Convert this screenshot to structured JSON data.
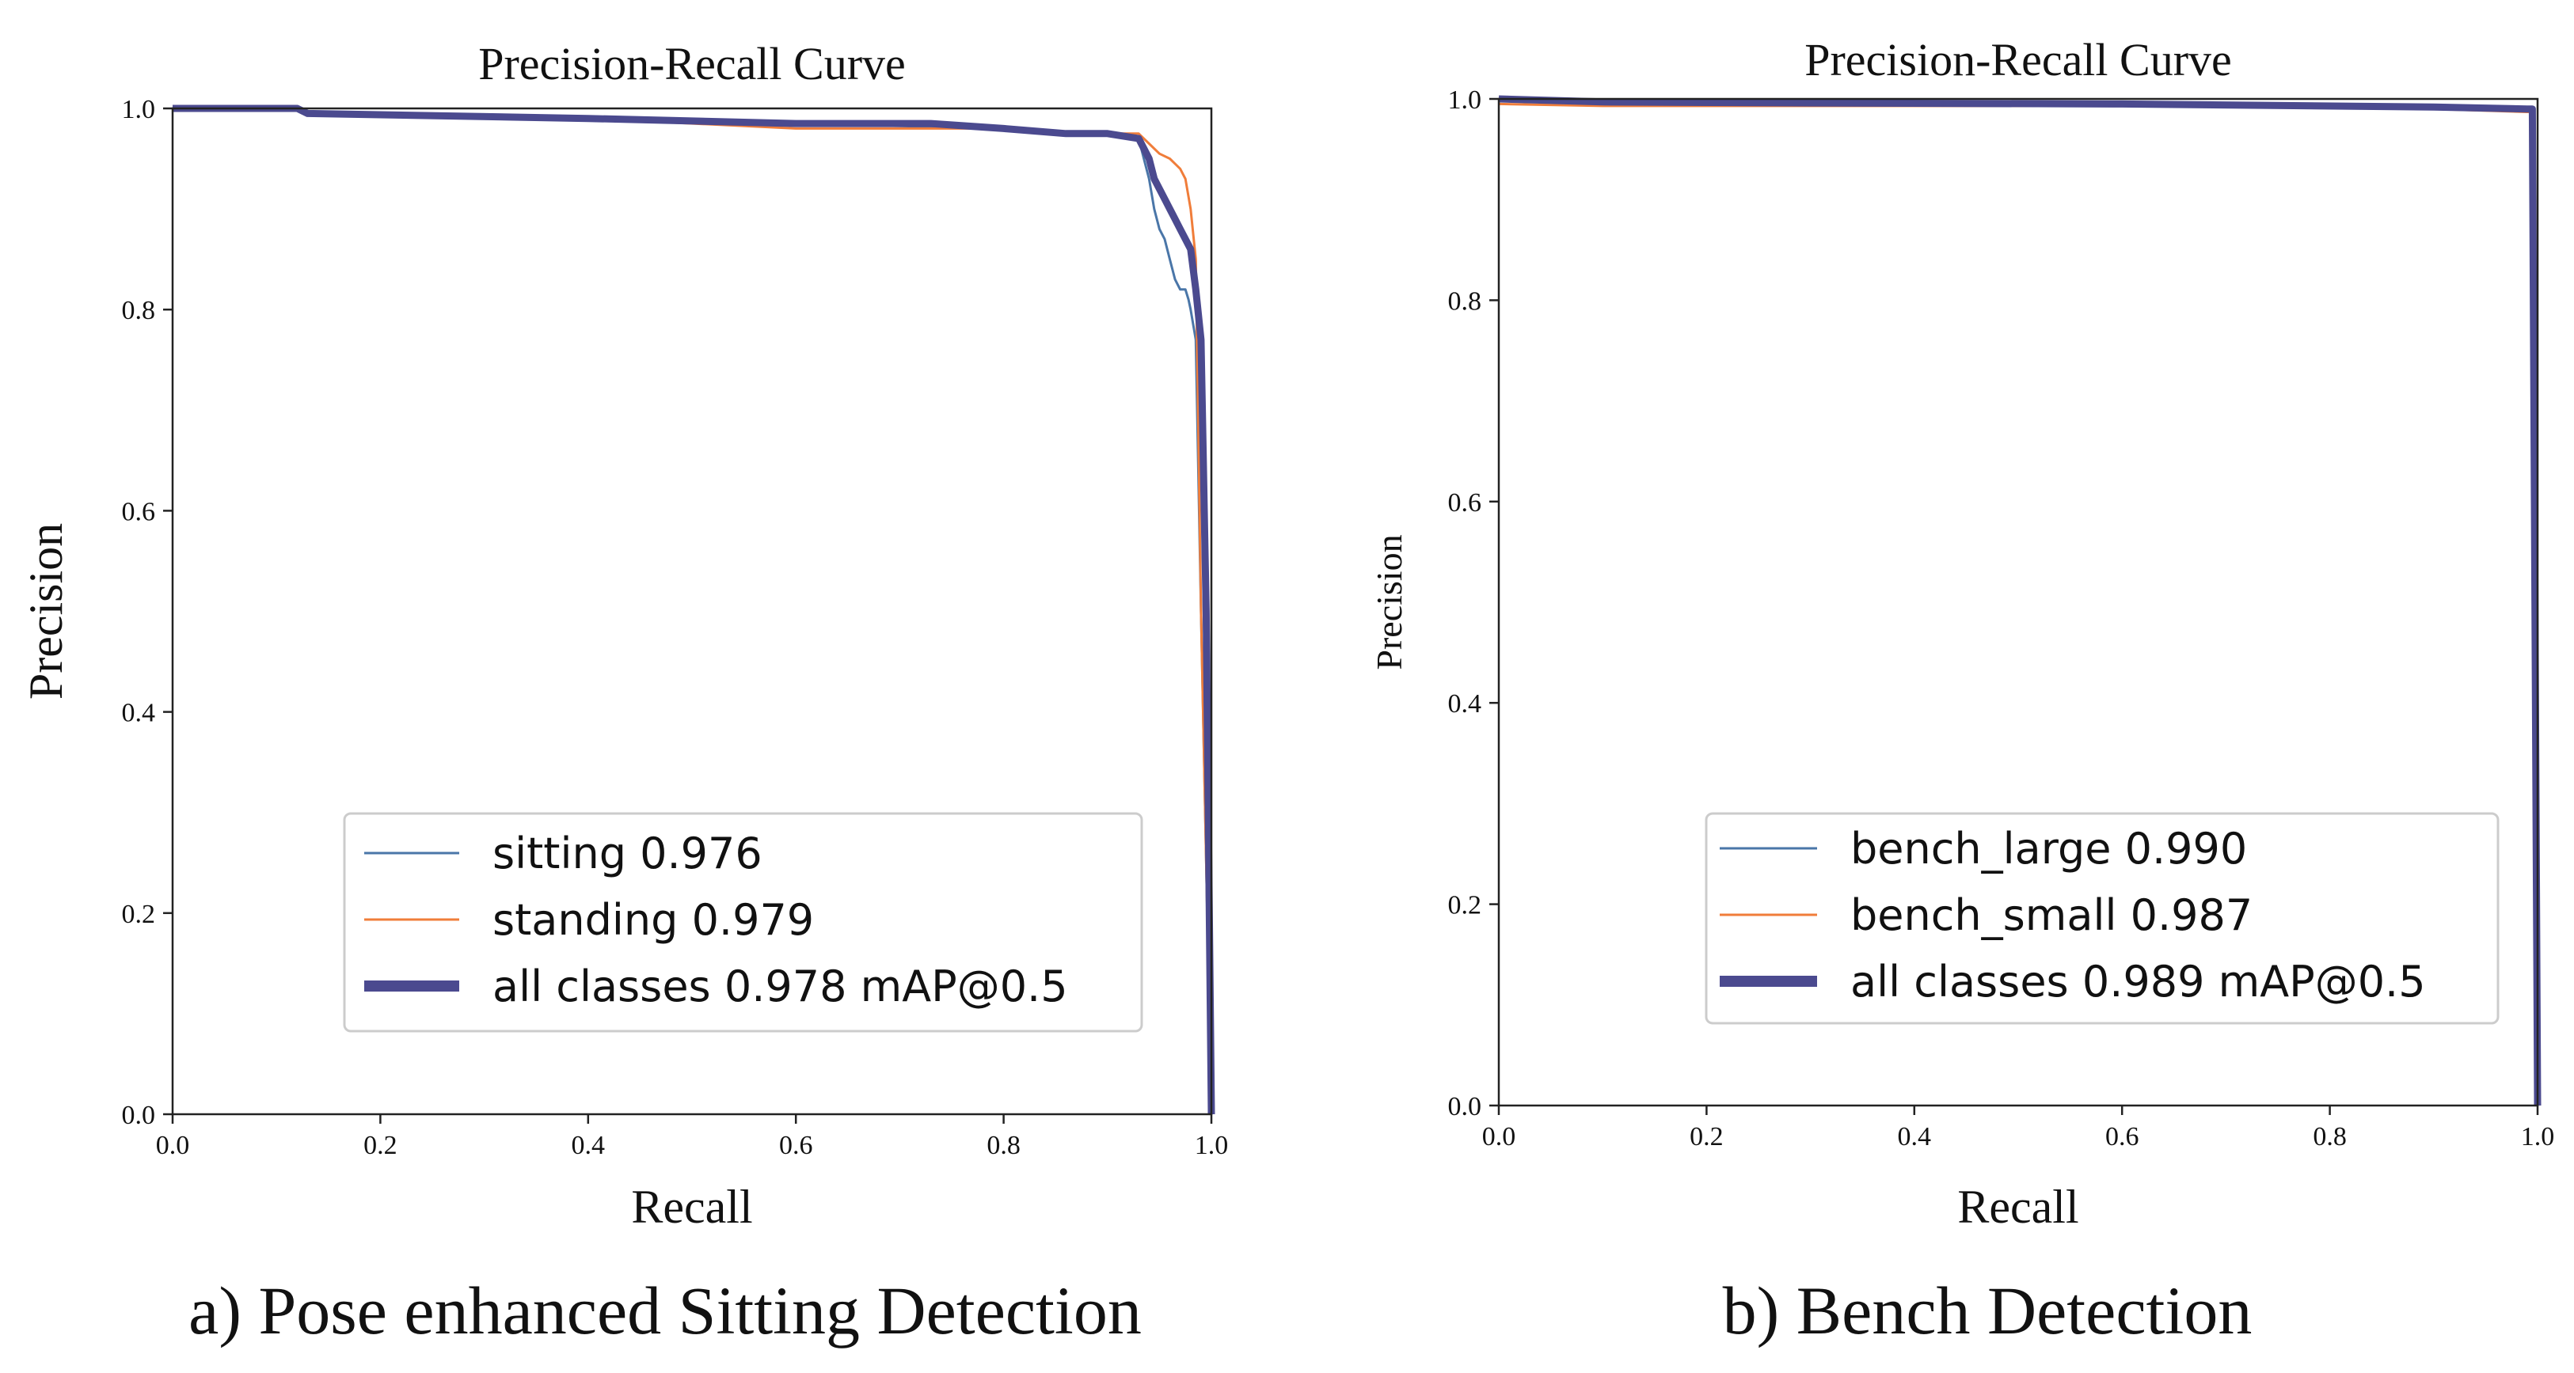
{
  "chart_data": [
    {
      "type": "line",
      "title": "Precision-Recall Curve",
      "xlabel": "Recall",
      "ylabel": "Precision",
      "xlim": [
        0,
        1
      ],
      "ylim": [
        0,
        1
      ],
      "xticks": [
        "0.0",
        "0.2",
        "0.4",
        "0.6",
        "0.8",
        "1.0"
      ],
      "yticks": [
        "0.0",
        "0.2",
        "0.4",
        "0.6",
        "0.8",
        "1.0"
      ],
      "grid": false,
      "legend_position": "lower-right",
      "caption": "a)  Pose enhanced Sitting Detection",
      "series": [
        {
          "name": "sitting 0.976",
          "color": "#4a76a8",
          "width": "thin",
          "points": [
            [
              0,
              1.0
            ],
            [
              0.12,
              1.0
            ],
            [
              0.13,
              0.995
            ],
            [
              0.4,
              0.99
            ],
            [
              0.6,
              0.985
            ],
            [
              0.8,
              0.98
            ],
            [
              0.86,
              0.975
            ],
            [
              0.9,
              0.975
            ],
            [
              0.93,
              0.97
            ],
            [
              0.935,
              0.95
            ],
            [
              0.94,
              0.93
            ],
            [
              0.945,
              0.9
            ],
            [
              0.95,
              0.88
            ],
            [
              0.955,
              0.87
            ],
            [
              0.96,
              0.85
            ],
            [
              0.965,
              0.83
            ],
            [
              0.97,
              0.82
            ],
            [
              0.975,
              0.82
            ],
            [
              0.978,
              0.81
            ],
            [
              0.98,
              0.8
            ],
            [
              0.985,
              0.77
            ],
            [
              0.99,
              0.5
            ],
            [
              1.0,
              0.0
            ]
          ]
        },
        {
          "name": "standing 0.979",
          "color": "#f07d3a",
          "width": "thin",
          "points": [
            [
              0,
              1.0
            ],
            [
              0.12,
              1.0
            ],
            [
              0.13,
              0.995
            ],
            [
              0.4,
              0.99
            ],
            [
              0.6,
              0.98
            ],
            [
              0.7,
              0.98
            ],
            [
              0.8,
              0.98
            ],
            [
              0.86,
              0.975
            ],
            [
              0.93,
              0.975
            ],
            [
              0.94,
              0.965
            ],
            [
              0.95,
              0.955
            ],
            [
              0.96,
              0.95
            ],
            [
              0.965,
              0.945
            ],
            [
              0.97,
              0.94
            ],
            [
              0.975,
              0.93
            ],
            [
              0.98,
              0.9
            ],
            [
              0.985,
              0.85
            ],
            [
              0.99,
              0.5
            ],
            [
              1.0,
              0.0
            ]
          ]
        },
        {
          "name": "all classes 0.978 mAP@0.5",
          "color": "#4b4a8f",
          "width": "thick",
          "points": [
            [
              0,
              1.0
            ],
            [
              0.12,
              1.0
            ],
            [
              0.13,
              0.995
            ],
            [
              0.4,
              0.99
            ],
            [
              0.6,
              0.985
            ],
            [
              0.73,
              0.985
            ],
            [
              0.8,
              0.98
            ],
            [
              0.86,
              0.975
            ],
            [
              0.9,
              0.975
            ],
            [
              0.93,
              0.97
            ],
            [
              0.94,
              0.95
            ],
            [
              0.945,
              0.93
            ],
            [
              0.95,
              0.92
            ],
            [
              0.955,
              0.91
            ],
            [
              0.96,
              0.9
            ],
            [
              0.965,
              0.89
            ],
            [
              0.97,
              0.88
            ],
            [
              0.975,
              0.87
            ],
            [
              0.98,
              0.86
            ],
            [
              0.985,
              0.82
            ],
            [
              0.99,
              0.77
            ],
            [
              0.995,
              0.5
            ],
            [
              1.0,
              0.0
            ]
          ]
        }
      ]
    },
    {
      "type": "line",
      "title": "Precision-Recall Curve",
      "xlabel": "Recall",
      "ylabel": "Precision",
      "xlim": [
        0,
        1
      ],
      "ylim": [
        0,
        1
      ],
      "xticks": [
        "0.0",
        "0.2",
        "0.4",
        "0.6",
        "0.8",
        "1.0"
      ],
      "yticks": [
        "0.0",
        "0.2",
        "0.4",
        "0.6",
        "0.8",
        "1.0"
      ],
      "grid": false,
      "legend_position": "lower-right",
      "caption": "b) Bench Detection",
      "series": [
        {
          "name": "bench_large 0.990",
          "color": "#4a76a8",
          "width": "thin",
          "points": [
            [
              0,
              1.0
            ],
            [
              0.3,
              0.998
            ],
            [
              0.6,
              0.996
            ],
            [
              0.9,
              0.993
            ],
            [
              0.99,
              0.99
            ],
            [
              0.995,
              0.99
            ],
            [
              1.0,
              0.0
            ]
          ]
        },
        {
          "name": "bench_small 0.987",
          "color": "#f07d3a",
          "width": "thin",
          "points": [
            [
              0,
              0.995
            ],
            [
              0.1,
              0.993
            ],
            [
              0.3,
              0.993
            ],
            [
              0.6,
              0.993
            ],
            [
              0.9,
              0.99
            ],
            [
              0.99,
              0.987
            ],
            [
              0.995,
              0.987
            ],
            [
              1.0,
              0.0
            ]
          ]
        },
        {
          "name": "all classes 0.989 mAP@0.5",
          "color": "#4b4a8f",
          "width": "thick",
          "points": [
            [
              0,
              1.0
            ],
            [
              0.1,
              0.997
            ],
            [
              0.3,
              0.996
            ],
            [
              0.6,
              0.995
            ],
            [
              0.9,
              0.992
            ],
            [
              0.99,
              0.99
            ],
            [
              0.995,
              0.99
            ],
            [
              1.0,
              0.0
            ]
          ]
        }
      ]
    }
  ]
}
